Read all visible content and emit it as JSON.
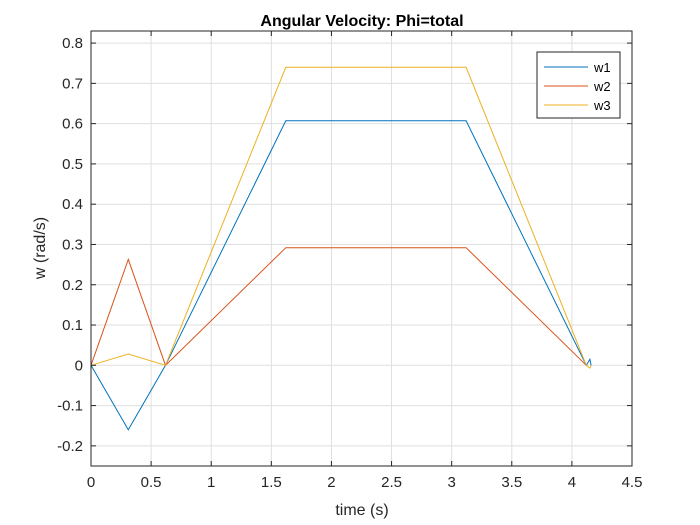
{
  "chart_data": {
    "type": "line",
    "title": "Angular Velocity: Phi=total",
    "xlabel": "time (s)",
    "ylabel": "w (rad/s)",
    "xlim": [
      0,
      4.5
    ],
    "ylim": [
      -0.25,
      0.83
    ],
    "xticks": [
      0,
      0.5,
      1,
      1.5,
      2,
      2.5,
      3,
      3.5,
      4,
      4.5
    ],
    "xtick_labels": [
      "0",
      "0.5",
      "1",
      "1.5",
      "2",
      "2.5",
      "3",
      "3.5",
      "4",
      "4.5"
    ],
    "yticks": [
      -0.2,
      -0.1,
      0,
      0.1,
      0.2,
      0.3,
      0.4,
      0.5,
      0.6,
      0.7,
      0.8
    ],
    "ytick_labels": [
      "-0.2",
      "-0.1",
      "0",
      "0.1",
      "0.2",
      "0.3",
      "0.4",
      "0.5",
      "0.6",
      "0.7",
      "0.8"
    ],
    "grid": true,
    "legend_position": "top-right",
    "series": [
      {
        "name": "w1",
        "color": "#0072BD",
        "x": [
          0,
          0.31,
          0.62,
          1.62,
          3.12,
          4.12,
          4.15,
          4.16
        ],
        "y": [
          0,
          -0.16,
          0,
          0.607,
          0.607,
          0,
          0.015,
          0
        ]
      },
      {
        "name": "w2",
        "color": "#D95319",
        "x": [
          0,
          0.31,
          0.62,
          1.62,
          3.12,
          4.12
        ],
        "y": [
          0,
          0.263,
          0,
          0.292,
          0.292,
          0
        ]
      },
      {
        "name": "w3",
        "color": "#EDB120",
        "x": [
          0,
          0.31,
          0.62,
          1.62,
          3.12,
          4.12,
          4.15,
          4.16
        ],
        "y": [
          0,
          0.028,
          0,
          0.74,
          0.74,
          0,
          -0.007,
          0
        ]
      }
    ]
  }
}
